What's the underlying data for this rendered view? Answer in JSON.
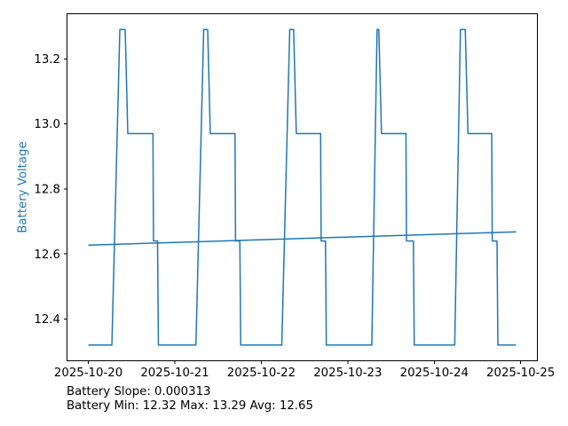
{
  "chart_data": {
    "type": "line",
    "title": "",
    "xlabel": "",
    "ylabel": "Battery Voltage",
    "ylabel_color": "#1f77b4",
    "line_color": "#1f77b4",
    "grid": false,
    "legend": "none",
    "x_unit": "days since 2025-10-20 00:00",
    "xlim": [
      -0.247,
      5.193
    ],
    "ylim": [
      12.2715,
      13.3385
    ],
    "x_ticks": [
      {
        "t": 0,
        "label": "2025-10-20"
      },
      {
        "t": 1,
        "label": "2025-10-21"
      },
      {
        "t": 2,
        "label": "2025-10-22"
      },
      {
        "t": 3,
        "label": "2025-10-23"
      },
      {
        "t": 4,
        "label": "2025-10-24"
      },
      {
        "t": 5,
        "label": "2025-10-25"
      }
    ],
    "y_ticks": [
      12.4,
      12.6,
      12.8,
      13.0,
      13.2
    ],
    "series": [
      {
        "name": "battery_voltage",
        "points": [
          [
            0.0,
            12.32
          ],
          [
            0.272,
            12.32
          ],
          [
            0.364,
            13.29
          ],
          [
            0.426,
            13.29
          ],
          [
            0.456,
            12.97
          ],
          [
            0.747,
            12.97
          ],
          [
            0.753,
            12.64
          ],
          [
            0.8,
            12.64
          ],
          [
            0.81,
            12.32
          ],
          [
            1.244,
            12.32
          ],
          [
            1.334,
            13.29
          ],
          [
            1.38,
            13.29
          ],
          [
            1.41,
            12.97
          ],
          [
            1.696,
            12.97
          ],
          [
            1.702,
            12.64
          ],
          [
            1.752,
            12.64
          ],
          [
            1.762,
            12.32
          ],
          [
            2.237,
            12.32
          ],
          [
            2.329,
            13.29
          ],
          [
            2.374,
            13.29
          ],
          [
            2.405,
            12.97
          ],
          [
            2.686,
            12.97
          ],
          [
            2.692,
            12.64
          ],
          [
            2.742,
            12.64
          ],
          [
            2.752,
            12.32
          ],
          [
            3.278,
            12.32
          ],
          [
            3.339,
            13.29
          ],
          [
            3.359,
            13.29
          ],
          [
            3.39,
            12.97
          ],
          [
            3.673,
            12.97
          ],
          [
            3.679,
            12.64
          ],
          [
            3.759,
            12.64
          ],
          [
            3.769,
            12.32
          ],
          [
            4.237,
            12.32
          ],
          [
            4.303,
            13.29
          ],
          [
            4.359,
            13.29
          ],
          [
            4.39,
            12.97
          ],
          [
            4.665,
            12.97
          ],
          [
            4.671,
            12.64
          ],
          [
            4.726,
            12.64
          ],
          [
            4.736,
            12.32
          ],
          [
            4.946,
            12.32
          ]
        ]
      },
      {
        "name": "battery_trend",
        "points": [
          [
            0.0,
            12.627
          ],
          [
            4.946,
            12.668
          ]
        ]
      }
    ],
    "stats": {
      "slope": "0.000313",
      "min": "12.32",
      "max": "13.29",
      "avg": "12.65"
    }
  },
  "annotations": {
    "slope_line": "Battery Slope: 0.000313",
    "stats_line": "Battery Min: 12.32 Max: 13.29 Avg: 12.65"
  }
}
